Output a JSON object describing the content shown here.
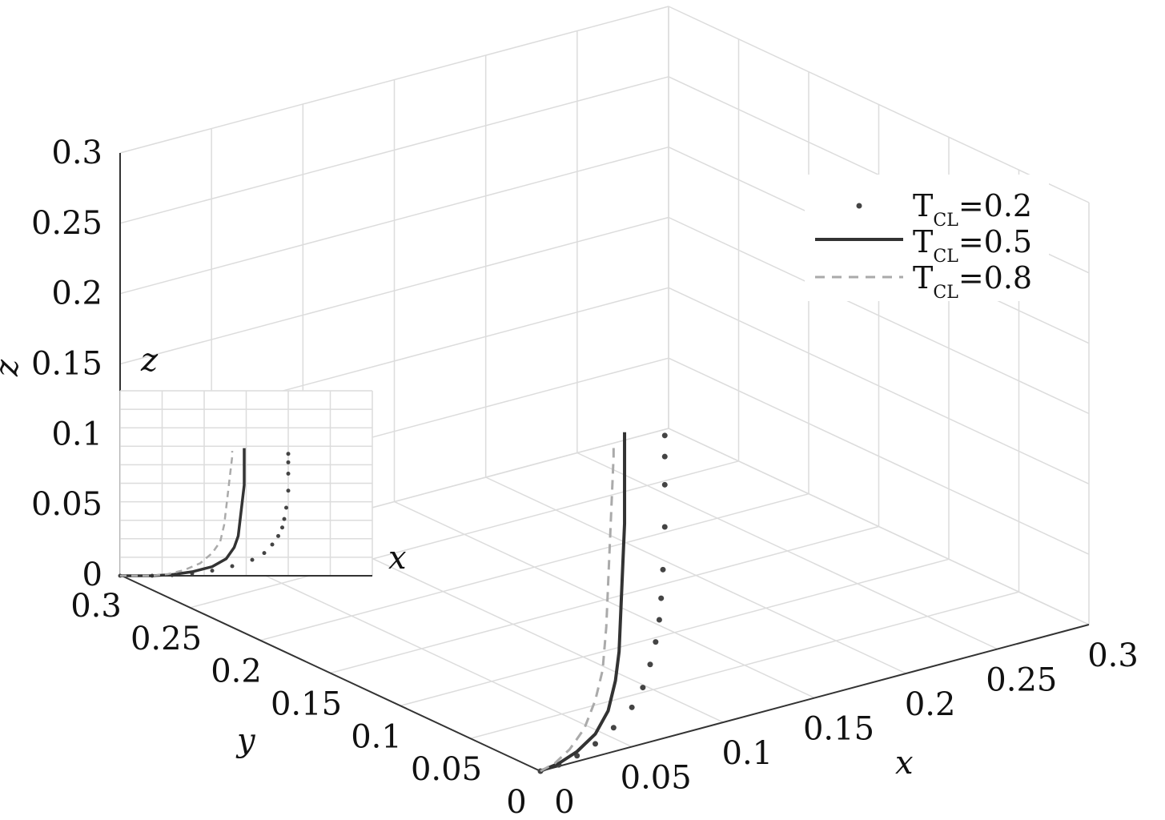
{
  "chart_data": {
    "type": "line",
    "projection": "3d",
    "grid": true,
    "legend_position": "top-right",
    "xlabel": "x",
    "ylabel": "y",
    "zlabel": "z",
    "xlim": [
      0,
      0.3
    ],
    "ylim": [
      0,
      0.3
    ],
    "zlim": [
      0,
      0.3
    ],
    "x_ticks": [
      "0",
      "0.05",
      "0.1",
      "0.15",
      "0.2",
      "0.25",
      "0.3"
    ],
    "y_ticks": [
      "0",
      "0.05",
      "0.1",
      "0.15",
      "0.2",
      "0.25",
      "0.3"
    ],
    "z_ticks": [
      "0",
      "0.05",
      "0.1",
      "0.15",
      "0.2",
      "0.25",
      "0.3"
    ],
    "series": [
      {
        "name": "T_CL=0.2",
        "label_main": "T",
        "label_sub": "CL",
        "label_value": "=0.2",
        "style": "dotted",
        "color": "#444444",
        "points": [
          [
            0,
            0,
            0
          ],
          [
            0.01,
            0,
            0.001
          ],
          [
            0.02,
            0,
            0.004
          ],
          [
            0.03,
            0,
            0.009
          ],
          [
            0.04,
            0,
            0.017
          ],
          [
            0.05,
            0,
            0.028
          ],
          [
            0.056,
            0,
            0.04
          ],
          [
            0.06,
            0,
            0.055
          ],
          [
            0.063,
            0,
            0.07
          ],
          [
            0.065,
            0,
            0.085
          ],
          [
            0.066,
            0,
            0.1
          ],
          [
            0.067,
            0,
            0.12
          ],
          [
            0.068,
            0,
            0.15
          ],
          [
            0.068,
            0,
            0.18
          ],
          [
            0.068,
            0,
            0.2
          ],
          [
            0.068,
            0,
            0.215
          ]
        ]
      },
      {
        "name": "T_CL=0.5",
        "label_main": "T",
        "label_sub": "CL",
        "label_value": "=0.5",
        "style": "solid",
        "color": "#333333",
        "points": [
          [
            0,
            0,
            0
          ],
          [
            0.01,
            0,
            0.002
          ],
          [
            0.02,
            0,
            0.007
          ],
          [
            0.03,
            0,
            0.016
          ],
          [
            0.037,
            0,
            0.03
          ],
          [
            0.041,
            0,
            0.05
          ],
          [
            0.043,
            0,
            0.07
          ],
          [
            0.044,
            0,
            0.1
          ],
          [
            0.045,
            0,
            0.13
          ],
          [
            0.046,
            0,
            0.16
          ],
          [
            0.046,
            0,
            0.19
          ],
          [
            0.046,
            0,
            0.22
          ],
          [
            0.046,
            0,
            0.225
          ]
        ]
      },
      {
        "name": "T_CL=0.8",
        "label_main": "T",
        "label_sub": "CL",
        "label_value": "=0.8",
        "style": "dashed",
        "color": "#aaaaaa",
        "points": [
          [
            0,
            0,
            0
          ],
          [
            0.008,
            0,
            0.003
          ],
          [
            0.016,
            0,
            0.01
          ],
          [
            0.024,
            0,
            0.022
          ],
          [
            0.03,
            0,
            0.04
          ],
          [
            0.034,
            0,
            0.06
          ],
          [
            0.036,
            0,
            0.09
          ],
          [
            0.037,
            0,
            0.12
          ],
          [
            0.038,
            0,
            0.15
          ],
          [
            0.039,
            0,
            0.18
          ],
          [
            0.04,
            0,
            0.21
          ],
          [
            0.04,
            0,
            0.22
          ]
        ]
      }
    ],
    "inset": {
      "xlabel": "x",
      "zlabel": "z",
      "grid": true
    }
  }
}
